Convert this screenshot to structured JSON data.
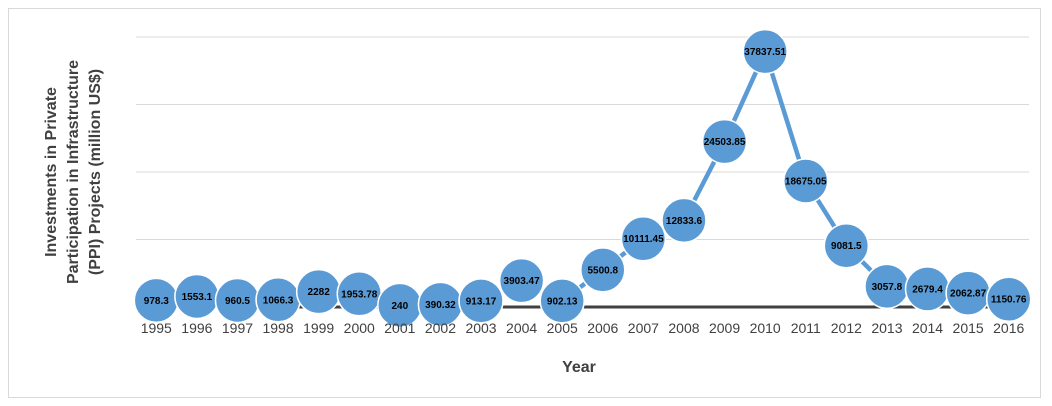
{
  "chart_data": {
    "type": "line",
    "title": "",
    "xlabel": "Year",
    "ylabel_lines": [
      "Investments in Private",
      "Participation in Infrastructure",
      "(PPI) Projects (million US$)"
    ],
    "categories": [
      "1995",
      "1996",
      "1997",
      "1998",
      "1999",
      "2000",
      "2001",
      "2002",
      "2003",
      "2004",
      "2005",
      "2006",
      "2007",
      "2008",
      "2009",
      "2010",
      "2011",
      "2012",
      "2013",
      "2014",
      "2015",
      "2016"
    ],
    "values": [
      978.3,
      1553.1,
      960.5,
      1066.3,
      2282,
      1953.78,
      240,
      390.32,
      913.17,
      3903.47,
      902.13,
      5500.8,
      10111.45,
      12833.6,
      24503.85,
      37837.51,
      18675.05,
      9081.5,
      3057.8,
      2679.4,
      2062.87,
      1150.76
    ],
    "data_labels": [
      "978.3",
      "1553.1",
      "960.5",
      "1066.3",
      "2282",
      "1953.78",
      "240",
      "390.32",
      "913.17",
      "3903.47",
      "902.13",
      "5500.8",
      "10111.45",
      "12833.6",
      "24503.85",
      "37837.51",
      "18675.05",
      "9081.5",
      "3057.8",
      "2679.4",
      "2062.87",
      "1150.76"
    ],
    "ylim": [
      0,
      40000
    ],
    "grid": true,
    "legend": "none",
    "colors": {
      "line": "#5b9bd5",
      "marker": "#5b9bd5",
      "marker_stroke": "#ffffff",
      "grid": "#d9d9d9",
      "baseline": "#404040"
    }
  }
}
